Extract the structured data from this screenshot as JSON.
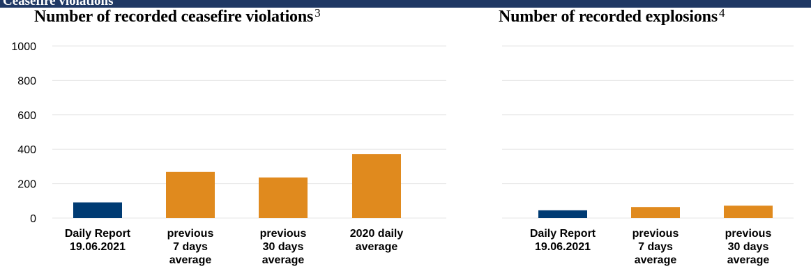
{
  "header": {
    "section_title": "Ceasefire violations"
  },
  "colors": {
    "header_bar": "#1f3864",
    "daily": "#003b73",
    "average": "#e08a1e",
    "grid": "#e6e6e6"
  },
  "chart_data": [
    {
      "type": "bar",
      "title": "Number of recorded ceasefire violations",
      "footnote": "3",
      "categories": [
        [
          "Daily Report",
          "19.06.2021"
        ],
        [
          "previous",
          "7 days",
          "average"
        ],
        [
          "previous",
          "30 days",
          "average"
        ],
        [
          "2020 daily",
          "average"
        ]
      ],
      "values": [
        91,
        268,
        236,
        372
      ],
      "bar_colors": [
        "#003b73",
        "#e08a1e",
        "#e08a1e",
        "#e08a1e"
      ],
      "ylim": [
        0,
        1000
      ],
      "yticks": [
        0,
        200,
        400,
        600,
        800,
        1000
      ],
      "grid": true
    },
    {
      "type": "bar",
      "title": "Number of recorded explosions",
      "footnote": "4",
      "categories": [
        [
          "Daily Report",
          "19.06.2021"
        ],
        [
          "previous",
          "7 days",
          "average"
        ],
        [
          "previous",
          "30 days",
          "average"
        ]
      ],
      "values": [
        45,
        64,
        72
      ],
      "bar_colors": [
        "#003b73",
        "#e08a1e",
        "#e08a1e"
      ],
      "ylim": [
        0,
        1000
      ],
      "grid": true
    }
  ]
}
